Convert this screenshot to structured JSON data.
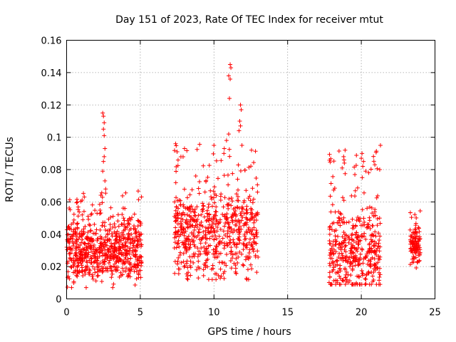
{
  "chart_data": {
    "type": "scatter",
    "title": "Day 151 of 2023, Rate Of TEC Index for receiver mtut",
    "xlabel": "GPS time / hours",
    "ylabel": "ROTI / TECUs",
    "xlim": [
      0,
      25
    ],
    "ylim": [
      0,
      0.16
    ],
    "xticks": [
      0,
      5,
      10,
      15,
      20,
      25
    ],
    "xtick_labels": [
      "0",
      "5",
      "10",
      "15",
      "20",
      "25"
    ],
    "yticks": [
      0,
      0.02,
      0.04,
      0.06,
      0.08,
      0.1,
      0.12,
      0.14,
      0.16
    ],
    "ytick_labels": [
      "0",
      "0.02",
      "0.04",
      "0.06",
      "0.08",
      "0.1",
      "0.12",
      "0.14",
      "0.16"
    ],
    "grid": true,
    "marker": "+",
    "color": "#ff0000",
    "series": [
      {
        "name": "ROTI",
        "clusters": [
          {
            "x_range": [
              0.0,
              5.1
            ],
            "y_range": [
              0.007,
              0.067
            ],
            "y_median": 0.03,
            "count": 700
          },
          {
            "x_range": [
              7.3,
              13.0
            ],
            "y_range": [
              0.012,
              0.096
            ],
            "y_median": 0.04,
            "count": 650
          },
          {
            "x_range": [
              17.8,
              21.3
            ],
            "y_range": [
              0.009,
              0.092
            ],
            "y_median": 0.028,
            "count": 420
          },
          {
            "x_range": [
              23.3,
              24.0
            ],
            "y_range": [
              0.017,
              0.057
            ],
            "y_median": 0.033,
            "count": 110
          }
        ],
        "points": [
          {
            "x": 2.45,
            "y": 0.115
          },
          {
            "x": 2.5,
            "y": 0.113
          },
          {
            "x": 2.55,
            "y": 0.109
          },
          {
            "x": 2.5,
            "y": 0.105
          },
          {
            "x": 2.55,
            "y": 0.101
          },
          {
            "x": 2.6,
            "y": 0.093
          },
          {
            "x": 2.55,
            "y": 0.088
          },
          {
            "x": 2.5,
            "y": 0.085
          },
          {
            "x": 2.45,
            "y": 0.079
          },
          {
            "x": 2.6,
            "y": 0.073
          },
          {
            "x": 2.65,
            "y": 0.068
          },
          {
            "x": 11.1,
            "y": 0.145
          },
          {
            "x": 11.15,
            "y": 0.143
          },
          {
            "x": 11.0,
            "y": 0.138
          },
          {
            "x": 11.1,
            "y": 0.136
          },
          {
            "x": 11.05,
            "y": 0.124
          },
          {
            "x": 11.8,
            "y": 0.12
          },
          {
            "x": 11.85,
            "y": 0.117
          },
          {
            "x": 11.75,
            "y": 0.11
          },
          {
            "x": 11.8,
            "y": 0.107
          },
          {
            "x": 11.7,
            "y": 0.104
          },
          {
            "x": 11.0,
            "y": 0.102
          },
          {
            "x": 10.85,
            "y": 0.098
          },
          {
            "x": 11.9,
            "y": 0.095
          },
          {
            "x": 10.7,
            "y": 0.093
          },
          {
            "x": 10.0,
            "y": 0.095
          },
          {
            "x": 7.4,
            "y": 0.096
          },
          {
            "x": 7.5,
            "y": 0.091
          },
          {
            "x": 8.0,
            "y": 0.093
          },
          {
            "x": 18.9,
            "y": 0.092
          },
          {
            "x": 18.8,
            "y": 0.088
          },
          {
            "x": 18.85,
            "y": 0.084
          },
          {
            "x": 18.7,
            "y": 0.081
          },
          {
            "x": 20.05,
            "y": 0.09
          },
          {
            "x": 20.0,
            "y": 0.087
          },
          {
            "x": 20.15,
            "y": 0.085
          },
          {
            "x": 20.1,
            "y": 0.082
          },
          {
            "x": 20.3,
            "y": 0.079
          },
          {
            "x": 20.5,
            "y": 0.078
          },
          {
            "x": 21.3,
            "y": 0.095
          },
          {
            "x": 21.25,
            "y": 0.08
          }
        ]
      }
    ]
  }
}
